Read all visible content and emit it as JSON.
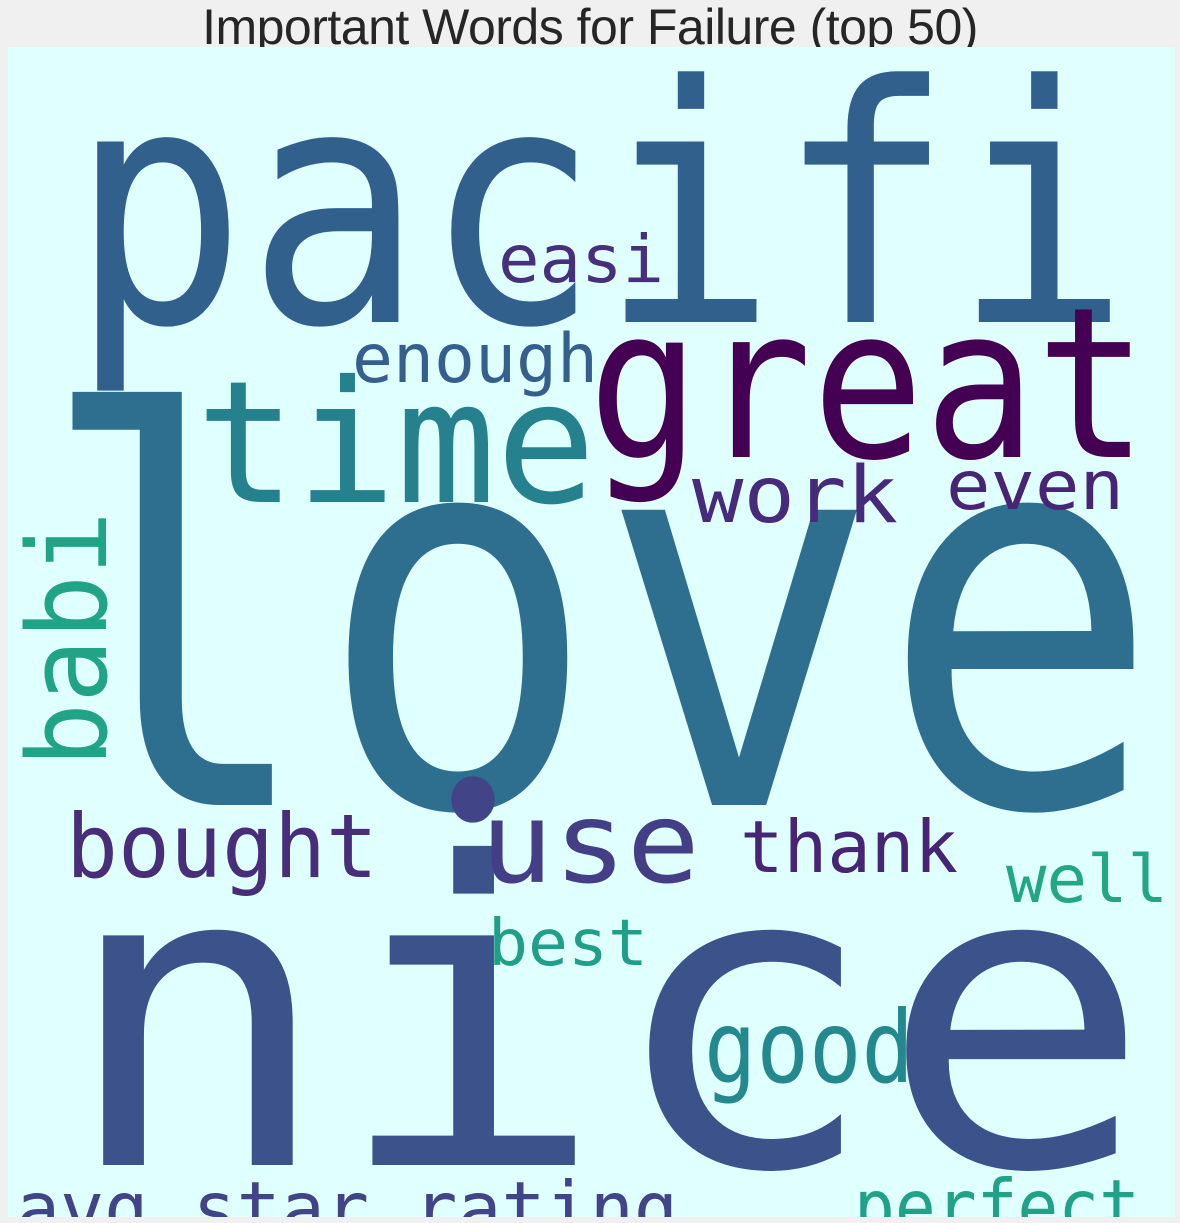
{
  "chart_data": {
    "type": "wordcloud",
    "title": "Important Words for Failure (top 50)",
    "background": "#e0ffff",
    "words": [
      {
        "text": "love",
        "color": "#2e6e8e"
      },
      {
        "text": "nice",
        "color": "#3b528b"
      },
      {
        "text": "pacifi",
        "color": "#31608d"
      },
      {
        "text": "great",
        "color": "#440154"
      },
      {
        "text": "time",
        "color": "#25818e"
      },
      {
        "text": "use",
        "color": "#433e85"
      },
      {
        "text": "babi",
        "color": "#20a386"
      },
      {
        "text": "good",
        "color": "#23898e"
      },
      {
        "text": "bought",
        "color": "#482d78"
      },
      {
        "text": "avg_star_rating",
        "color": "#414487"
      },
      {
        "text": "perfect",
        "color": "#1fa287"
      },
      {
        "text": "work",
        "color": "#472a7a"
      },
      {
        "text": "thank",
        "color": "#482475"
      },
      {
        "text": "even",
        "color": "#482475"
      },
      {
        "text": "enough",
        "color": "#355f8d"
      },
      {
        "text": "easi",
        "color": "#46307e"
      },
      {
        "text": "well",
        "color": "#22a785"
      },
      {
        "text": "best",
        "color": "#1f9f88"
      },
      {
        "text": "•",
        "color": "#414487"
      }
    ]
  }
}
